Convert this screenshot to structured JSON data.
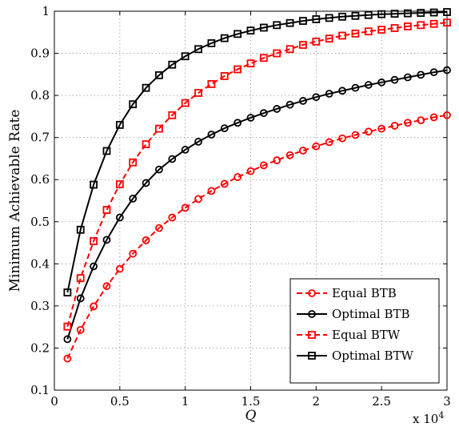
{
  "chart_data": {
    "type": "line",
    "title": "",
    "xlabel": "Q",
    "ylabel": "Minimum Achievable Rate",
    "x_multiplier_label": "x 10",
    "x_multiplier_exponent": "4",
    "xlim": [
      0,
      30000
    ],
    "ylim": [
      0.1,
      1.0
    ],
    "x_ticks": [
      0,
      5000,
      10000,
      15000,
      20000,
      25000,
      30000
    ],
    "x_tick_labels": [
      "0",
      "0.5",
      "1",
      "1.5",
      "2",
      "2.5",
      "3"
    ],
    "y_ticks": [
      0.1,
      0.2,
      0.3,
      0.4,
      0.5,
      0.6,
      0.7,
      0.8,
      0.9,
      1.0
    ],
    "y_tick_labels": [
      "0.1",
      "0.2",
      "0.3",
      "0.4",
      "0.5",
      "0.6",
      "0.7",
      "0.8",
      "0.9",
      "1"
    ],
    "grid": true,
    "legend_position": "bottom-right",
    "x": [
      1000,
      2000,
      3000,
      4000,
      5000,
      6000,
      7000,
      8000,
      9000,
      10000,
      11000,
      12000,
      13000,
      14000,
      15000,
      16000,
      17000,
      18000,
      19000,
      20000,
      21000,
      22000,
      23000,
      24000,
      25000,
      26000,
      27000,
      28000,
      29000,
      30000
    ],
    "series": [
      {
        "name": "Equal BTB",
        "color": "#ff0000",
        "line_style": "dashed",
        "marker": "circle",
        "values": [
          0.175,
          0.243,
          0.299,
          0.347,
          0.388,
          0.424,
          0.456,
          0.485,
          0.51,
          0.533,
          0.554,
          0.573,
          0.59,
          0.606,
          0.62,
          0.634,
          0.646,
          0.658,
          0.669,
          0.679,
          0.689,
          0.698,
          0.706,
          0.714,
          0.721,
          0.728,
          0.735,
          0.741,
          0.748,
          0.753
        ]
      },
      {
        "name": "Optimal BTB",
        "color": "#000000",
        "line_style": "solid",
        "marker": "circle",
        "values": [
          0.221,
          0.318,
          0.394,
          0.457,
          0.51,
          0.555,
          0.592,
          0.624,
          0.649,
          0.671,
          0.69,
          0.707,
          0.722,
          0.735,
          0.747,
          0.758,
          0.768,
          0.778,
          0.787,
          0.796,
          0.804,
          0.811,
          0.818,
          0.825,
          0.831,
          0.837,
          0.843,
          0.849,
          0.855,
          0.86
        ]
      },
      {
        "name": "Equal BTW",
        "color": "#ff0000",
        "line_style": "dashed",
        "marker": "square",
        "values": [
          0.251,
          0.366,
          0.454,
          0.528,
          0.589,
          0.641,
          0.684,
          0.721,
          0.753,
          0.782,
          0.806,
          0.827,
          0.846,
          0.862,
          0.876,
          0.889,
          0.9,
          0.91,
          0.92,
          0.928,
          0.935,
          0.942,
          0.947,
          0.952,
          0.956,
          0.96,
          0.964,
          0.967,
          0.97,
          0.973
        ]
      },
      {
        "name": "Optimal BTW",
        "color": "#000000",
        "line_style": "solid",
        "marker": "square",
        "values": [
          0.332,
          0.481,
          0.588,
          0.668,
          0.73,
          0.779,
          0.818,
          0.848,
          0.873,
          0.893,
          0.91,
          0.924,
          0.936,
          0.946,
          0.954,
          0.961,
          0.967,
          0.972,
          0.977,
          0.981,
          0.984,
          0.987,
          0.989,
          0.991,
          0.993,
          0.994,
          0.995,
          0.996,
          0.997,
          0.998
        ]
      }
    ]
  }
}
